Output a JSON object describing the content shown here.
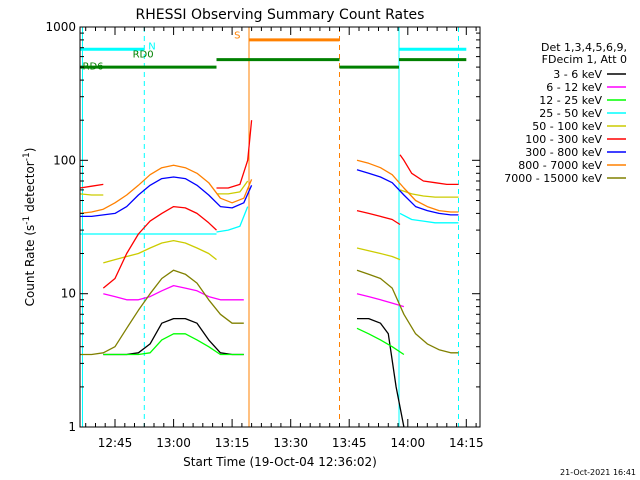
{
  "chart_data": {
    "type": "line",
    "title": "RHESSI Observing Summary Count Rates",
    "xlabel": "Start Time (19-Oct-04 12:36:02)",
    "ylabel_main": "Count Rate (s",
    "ylabel_sup1": "-1",
    "ylabel_mid": " detector",
    "ylabel_sup2": "-1",
    "ylabel_end": ")",
    "y_scale": "log",
    "ylim": [
      1,
      1000
    ],
    "xlim": [
      "12:36:02",
      "14:18:30"
    ],
    "y_ticks": [
      {
        "value": 1,
        "label": "1"
      },
      {
        "value": 10,
        "label": "10"
      },
      {
        "value": 100,
        "label": "100"
      },
      {
        "value": 1000,
        "label": "1000"
      }
    ],
    "x_ticks": [
      {
        "time": "12:45",
        "label": "12:45"
      },
      {
        "time": "13:00",
        "label": "13:00"
      },
      {
        "time": "13:15",
        "label": "13:15"
      },
      {
        "time": "13:30",
        "label": "13:30"
      },
      {
        "time": "13:45",
        "label": "13:45"
      },
      {
        "time": "14:00",
        "label": "14:00"
      },
      {
        "time": "14:15",
        "label": "14:15"
      }
    ],
    "legend_header": [
      "Det 1,3,4,5,6,9,",
      "FDecim 1, Att 0"
    ],
    "series": [
      {
        "name": "3 - 6 keV",
        "color": "#000000",
        "segments": [
          {
            "x": [
              "12:42:00",
              "12:45:00",
              "12:48:00",
              "12:51:00",
              "12:54:00",
              "12:57:00",
              "13:00:00",
              "13:03:00",
              "13:06:00",
              "13:09:00",
              "13:12:00",
              "13:15:00",
              "13:18:00"
            ],
            "y": [
              3.5,
              3.5,
              3.5,
              3.6,
              4.2,
              6.0,
              6.5,
              6.5,
              6.0,
              4.5,
              3.6,
              3.5,
              3.5
            ]
          },
          {
            "x": [
              "13:47:00",
              "13:50:00",
              "13:53:00",
              "13:55:00",
              "13:57:00",
              "13:59:00"
            ],
            "y": [
              6.5,
              6.5,
              6.0,
              5.0,
              2.0,
              1.0
            ]
          }
        ]
      },
      {
        "name": "6 - 12 keV",
        "color": "#ff00ff",
        "segments": [
          {
            "x": [
              "12:42:00",
              "12:45:00",
              "12:48:00",
              "12:51:00",
              "12:54:00",
              "12:57:00",
              "13:00:00",
              "13:03:00",
              "13:06:00",
              "13:09:00",
              "13:12:00",
              "13:15:00",
              "13:18:00"
            ],
            "y": [
              10.0,
              9.5,
              9.0,
              9.0,
              9.5,
              10.5,
              11.5,
              11.0,
              10.5,
              9.5,
              9.0,
              9.0,
              9.0
            ]
          },
          {
            "x": [
              "13:47:00",
              "13:50:00",
              "13:53:00",
              "13:56:00",
              "13:59:00"
            ],
            "y": [
              10.0,
              9.5,
              9.0,
              8.5,
              8.0
            ]
          }
        ]
      },
      {
        "name": "12 - 25 keV",
        "color": "#00ff00",
        "segments": [
          {
            "x": [
              "12:42:00",
              "12:45:00",
              "12:48:00",
              "12:51:00",
              "12:54:00",
              "12:57:00",
              "13:00:00",
              "13:03:00",
              "13:06:00",
              "13:09:00",
              "13:12:00",
              "13:15:00",
              "13:18:00"
            ],
            "y": [
              3.5,
              3.5,
              3.5,
              3.5,
              3.6,
              4.5,
              5.0,
              5.0,
              4.5,
              4.0,
              3.5,
              3.5,
              3.5
            ]
          },
          {
            "x": [
              "13:47:00",
              "13:50:00",
              "13:53:00",
              "13:56:00",
              "13:59:00"
            ],
            "y": [
              5.5,
              5.0,
              4.5,
              4.0,
              3.5
            ]
          }
        ]
      },
      {
        "name": "25 - 50 keV",
        "color": "#00ffff",
        "segments": [
          {
            "x": [
              "12:36:02",
              "12:39:00",
              "12:42:00",
              "12:45:00",
              "12:48:00",
              "12:51:00",
              "12:54:00",
              "12:57:00",
              "13:00:00",
              "13:03:00",
              "13:06:00",
              "13:09:00",
              "13:11:00"
            ],
            "y": [
              28,
              28,
              28,
              28,
              28,
              28,
              28,
              28,
              28,
              28,
              28,
              28,
              28
            ]
          },
          {
            "x": [
              "13:11:00",
              "13:14:00",
              "13:17:00",
              "13:19:00"
            ],
            "y": [
              29,
              30,
              32,
              45
            ]
          },
          {
            "x": [
              "13:58:00",
              "14:01:00",
              "14:04:00",
              "14:07:00",
              "14:10:00",
              "14:13:00"
            ],
            "y": [
              40,
              36,
              35,
              34,
              34,
              34
            ]
          }
        ]
      },
      {
        "name": "50 - 100 keV",
        "color": "#cccc00",
        "segments": [
          {
            "x": [
              "12:36:02",
              "12:39:00",
              "12:42:00"
            ],
            "y": [
              56,
              55,
              55
            ]
          },
          {
            "x": [
              "12:42:00",
              "12:45:00",
              "12:48:00",
              "12:51:00",
              "12:54:00",
              "12:57:00",
              "13:00:00",
              "13:03:00",
              "13:06:00",
              "13:09:00",
              "13:11:00"
            ],
            "y": [
              17,
              18,
              19,
              20,
              22,
              24,
              25,
              24,
              22,
              20,
              18
            ]
          },
          {
            "x": [
              "13:11:00",
              "13:14:00",
              "13:17:00",
              "13:19:00"
            ],
            "y": [
              56,
              56,
              58,
              70
            ]
          },
          {
            "x": [
              "13:47:00",
              "13:50:00",
              "13:53:00",
              "13:56:00",
              "13:58:00"
            ],
            "y": [
              22,
              21,
              20,
              19,
              18
            ]
          },
          {
            "x": [
              "13:58:00",
              "14:01:00",
              "14:04:00",
              "14:07:00",
              "14:10:00",
              "14:13:00"
            ],
            "y": [
              60,
              56,
              54,
              53,
              53,
              53
            ]
          }
        ]
      },
      {
        "name": "100 - 300 keV",
        "color": "#ff0000",
        "segments": [
          {
            "x": [
              "12:36:02",
              "12:39:00",
              "12:42:00"
            ],
            "y": [
              62,
              64,
              66
            ]
          },
          {
            "x": [
              "12:42:00",
              "12:45:00",
              "12:48:00",
              "12:51:00",
              "12:54:00",
              "12:57:00",
              "13:00:00",
              "13:03:00",
              "13:06:00",
              "13:09:00",
              "13:11:00"
            ],
            "y": [
              11,
              13,
              20,
              28,
              35,
              40,
              45,
              44,
              40,
              34,
              30
            ]
          },
          {
            "x": [
              "13:11:00",
              "13:14:00",
              "13:17:00",
              "13:19:00",
              "13:20:00"
            ],
            "y": [
              62,
              62,
              66,
              100,
              200
            ]
          },
          {
            "x": [
              "13:47:00",
              "13:50:00",
              "13:53:00",
              "13:56:00",
              "13:58:00"
            ],
            "y": [
              42,
              40,
              38,
              36,
              33
            ]
          },
          {
            "x": [
              "13:58:00",
              "13:59:00",
              "14:01:00",
              "14:04:00",
              "14:07:00",
              "14:10:00",
              "14:13:00"
            ],
            "y": [
              110,
              100,
              80,
              70,
              68,
              66,
              66
            ]
          }
        ]
      },
      {
        "name": "300 - 800 keV",
        "color": "#0000ff",
        "segments": [
          {
            "x": [
              "12:36:02",
              "12:39:00",
              "12:42:00",
              "12:45:00",
              "12:48:00",
              "12:51:00",
              "12:54:00",
              "12:57:00",
              "13:00:00",
              "13:03:00",
              "13:06:00",
              "13:09:00",
              "13:12:00",
              "13:15:00",
              "13:18:00",
              "13:20:00"
            ],
            "y": [
              38,
              38,
              39,
              40,
              45,
              55,
              65,
              73,
              75,
              73,
              65,
              55,
              45,
              44,
              48,
              65
            ]
          },
          {
            "x": [
              "13:47:00",
              "13:50:00",
              "13:53:00",
              "13:56:00",
              "13:59:00",
              "14:02:00",
              "14:05:00",
              "14:08:00",
              "14:11:00",
              "14:13:00"
            ],
            "y": [
              85,
              80,
              75,
              68,
              55,
              45,
              42,
              40,
              39,
              39
            ]
          }
        ]
      },
      {
        "name": "800 - 7000 keV",
        "color": "#ff8000",
        "segments": [
          {
            "x": [
              "12:36:02",
              "12:39:00",
              "12:42:00",
              "12:45:00",
              "12:48:00",
              "12:51:00",
              "12:54:00",
              "12:57:00",
              "13:00:00",
              "13:03:00",
              "13:06:00",
              "13:09:00",
              "13:12:00",
              "13:15:00",
              "13:18:00",
              "13:20:00"
            ],
            "y": [
              40,
              41,
              43,
              48,
              55,
              65,
              78,
              88,
              92,
              88,
              80,
              68,
              52,
              48,
              52,
              72
            ]
          },
          {
            "x": [
              "13:47:00",
              "13:50:00",
              "13:53:00",
              "13:56:00",
              "13:59:00",
              "14:02:00",
              "14:05:00",
              "14:08:00",
              "14:11:00",
              "14:13:00"
            ],
            "y": [
              100,
              95,
              88,
              78,
              62,
              50,
              45,
              42,
              41,
              41
            ]
          }
        ]
      },
      {
        "name": "7000 - 15000 keV",
        "color": "#808000",
        "segments": [
          {
            "x": [
              "12:36:02",
              "12:39:00",
              "12:42:00",
              "12:45:00",
              "12:48:00",
              "12:51:00",
              "12:54:00",
              "12:57:00",
              "13:00:00",
              "13:03:00",
              "13:06:00",
              "13:09:00",
              "13:12:00",
              "13:15:00",
              "13:18:00"
            ],
            "y": [
              3.5,
              3.5,
              3.6,
              4.0,
              5.5,
              7.5,
              10,
              13,
              15,
              14,
              12,
              9,
              7,
              6,
              6
            ]
          },
          {
            "x": [
              "13:47:00",
              "13:50:00",
              "13:53:00",
              "13:56:00",
              "13:59:00",
              "14:02:00",
              "14:05:00",
              "14:08:00",
              "14:11:00",
              "14:13:00"
            ],
            "y": [
              15,
              14,
              13,
              11,
              7,
              5,
              4.2,
              3.8,
              3.6,
              3.6
            ]
          }
        ]
      }
    ],
    "vertical_markers": [
      {
        "time": "12:36:40",
        "color": "#00ffff",
        "style": "solid"
      },
      {
        "time": "12:52:30",
        "color": "#00ffff",
        "style": "dashed"
      },
      {
        "time": "13:19:20",
        "color": "#ff8000",
        "style": "solid"
      },
      {
        "time": "13:42:30",
        "color": "#ff8000",
        "style": "dashed"
      },
      {
        "time": "13:57:45",
        "color": "#00ffff",
        "style": "solid"
      },
      {
        "time": "14:13:00",
        "color": "#00ffff",
        "style": "dashed"
      }
    ],
    "flag_bars": [
      {
        "label": "N",
        "color": "#00ffff",
        "value": 680,
        "x_start": "12:36:02",
        "x_end": "12:52:30",
        "label_at": "12:53:30",
        "label_color": "#00ffff",
        "label_value": 680
      },
      {
        "label": "",
        "color": "#00ffff",
        "value": 680,
        "x_start": "13:57:45",
        "x_end": "14:15:00",
        "label_at": "",
        "label_color": "#00ffff",
        "label_value": 680
      },
      {
        "label": "S",
        "color": "#ff8000",
        "value": 800,
        "x_start": "13:19:20",
        "x_end": "13:42:30",
        "label_at": "13:15:30",
        "label_color": "#ff8000",
        "label_value": 820
      },
      {
        "label": "RD0",
        "color": "#008000",
        "value": 560,
        "x_start": "12:36:02",
        "x_end": "13:11:00",
        "label_at": "12:49:30",
        "label_color": "#008000",
        "label_value": 590
      },
      {
        "label": "RD6",
        "color": "#008000",
        "value": 500,
        "x_start": "12:36:02",
        "x_end": "13:11:00",
        "label_at": "12:36:40",
        "label_color": "#008000",
        "label_value": 480
      }
    ],
    "flag_segments": [
      {
        "color": "#008000",
        "value": 500,
        "x_start": "12:36:02",
        "x_end": "13:11:00"
      },
      {
        "color": "#008000",
        "value": 570,
        "x_start": "13:11:00",
        "x_end": "13:42:30"
      },
      {
        "color": "#008000",
        "value": 500,
        "x_start": "13:42:30",
        "x_end": "13:57:45"
      },
      {
        "color": "#008000",
        "value": 570,
        "x_start": "13:57:45",
        "x_end": "14:15:00"
      }
    ],
    "timestamp": "21-Oct-2021 16:41",
    "grid": false,
    "legend_position": "right"
  }
}
